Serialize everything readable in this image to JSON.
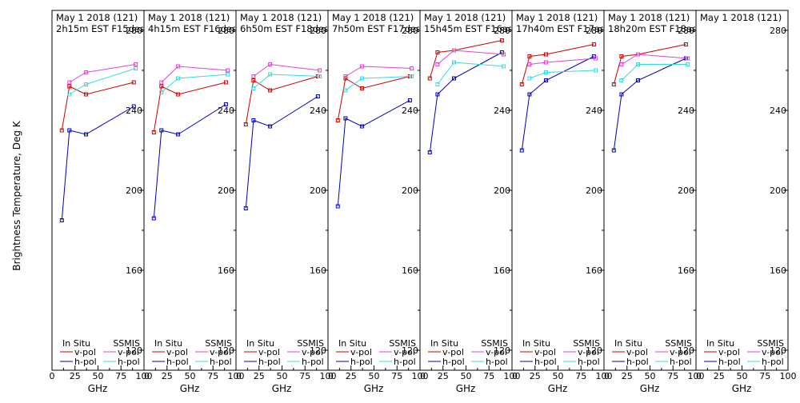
{
  "colors": {
    "insitu_v": "#cc0000",
    "insitu_h": "#0000bb",
    "ssmis_v": "#dd44dd",
    "ssmis_h": "#33dddd",
    "axes": "#000000",
    "background": "#ffffff"
  },
  "y_axis_label": "Brightness Temperature, Deg K",
  "x_axis_label": "GHz",
  "y_ticks": [
    "120",
    "160",
    "200",
    "240",
    "280"
  ],
  "x_ticks": [
    "0",
    "25",
    "50",
    "75",
    "100"
  ],
  "legend": {
    "insitu_header": "In Situ",
    "ssmis_header": "SSMIS",
    "v_label": "v-pol",
    "h_label": "h-pol"
  },
  "chart_data": [
    {
      "type": "line",
      "title_line1": "May 1 2018 (121)",
      "title_line2": "2h15m EST F15des",
      "ylim": [
        110,
        290
      ],
      "xlim": [
        0,
        100
      ],
      "series": [
        {
          "name": "In Situ v-pol",
          "x": [
            10.7,
            19,
            37,
            89
          ],
          "values": [
            230,
            252,
            248,
            254
          ]
        },
        {
          "name": "In Situ h-pol",
          "x": [
            10.7,
            19,
            37,
            89
          ],
          "values": [
            185,
            230,
            228,
            242
          ]
        },
        {
          "name": "SSMIS v-pol",
          "x": [
            19,
            37,
            91
          ],
          "values": [
            254,
            259,
            263
          ]
        },
        {
          "name": "SSMIS h-pol",
          "x": [
            19,
            37,
            91
          ],
          "values": [
            248,
            253,
            261
          ]
        }
      ]
    },
    {
      "type": "line",
      "title_line1": "May 1 2018 (121)",
      "title_line2": "4h15m EST F16des",
      "ylim": [
        110,
        290
      ],
      "xlim": [
        0,
        100
      ],
      "series": [
        {
          "name": "In Situ v-pol",
          "x": [
            10.7,
            19,
            37,
            89
          ],
          "values": [
            229,
            252,
            248,
            254
          ]
        },
        {
          "name": "In Situ h-pol",
          "x": [
            10.7,
            19,
            37,
            89
          ],
          "values": [
            186,
            230,
            228,
            243
          ]
        },
        {
          "name": "SSMIS v-pol",
          "x": [
            19,
            37,
            91
          ],
          "values": [
            254,
            262,
            260
          ]
        },
        {
          "name": "SSMIS h-pol",
          "x": [
            19,
            37,
            91
          ],
          "values": [
            249,
            256,
            258
          ]
        }
      ]
    },
    {
      "type": "line",
      "title_line1": "May 1 2018 (121)",
      "title_line2": "6h50m EST F18des",
      "ylim": [
        110,
        290
      ],
      "xlim": [
        0,
        100
      ],
      "series": [
        {
          "name": "In Situ v-pol",
          "x": [
            10.7,
            19,
            37,
            89
          ],
          "values": [
            233,
            255,
            250,
            257
          ]
        },
        {
          "name": "In Situ h-pol",
          "x": [
            10.7,
            19,
            37,
            89
          ],
          "values": [
            191,
            235,
            232,
            247
          ]
        },
        {
          "name": "SSMIS v-pol",
          "x": [
            19,
            37,
            91
          ],
          "values": [
            257,
            263,
            260
          ]
        },
        {
          "name": "SSMIS h-pol",
          "x": [
            19,
            37,
            91
          ],
          "values": [
            251,
            258,
            257
          ]
        }
      ]
    },
    {
      "type": "line",
      "title_line1": "May 1 2018 (121)",
      "title_line2": "7h50m EST F17des",
      "ylim": [
        110,
        290
      ],
      "xlim": [
        0,
        100
      ],
      "series": [
        {
          "name": "In Situ v-pol",
          "x": [
            10.7,
            19,
            37,
            89
          ],
          "values": [
            235,
            256,
            251,
            257
          ]
        },
        {
          "name": "In Situ h-pol",
          "x": [
            10.7,
            19,
            37,
            89
          ],
          "values": [
            192,
            236,
            232,
            245
          ]
        },
        {
          "name": "SSMIS v-pol",
          "x": [
            19,
            37,
            91
          ],
          "values": [
            257,
            262,
            261
          ]
        },
        {
          "name": "SSMIS h-pol",
          "x": [
            19,
            37,
            91
          ],
          "values": [
            250,
            256,
            257
          ]
        }
      ]
    },
    {
      "type": "line",
      "title_line1": "May 1 2018 (121)",
      "title_line2": "15h45m EST F16asc",
      "ylim": [
        110,
        290
      ],
      "xlim": [
        0,
        100
      ],
      "series": [
        {
          "name": "In Situ v-pol",
          "x": [
            10.7,
            19,
            37,
            89
          ],
          "values": [
            256,
            269,
            270,
            275
          ]
        },
        {
          "name": "In Situ h-pol",
          "x": [
            10.7,
            19,
            37,
            89
          ],
          "values": [
            219,
            248,
            256,
            269
          ]
        },
        {
          "name": "SSMIS v-pol",
          "x": [
            19,
            37,
            91
          ],
          "values": [
            263,
            270,
            268
          ]
        },
        {
          "name": "SSMIS h-pol",
          "x": [
            19,
            37,
            91
          ],
          "values": [
            253,
            264,
            262
          ]
        }
      ]
    },
    {
      "type": "line",
      "title_line1": "May 1 2018 (121)",
      "title_line2": "17h40m EST F17asc",
      "ylim": [
        110,
        290
      ],
      "xlim": [
        0,
        100
      ],
      "series": [
        {
          "name": "In Situ v-pol",
          "x": [
            10.7,
            19,
            37,
            89
          ],
          "values": [
            253,
            267,
            268,
            273
          ]
        },
        {
          "name": "In Situ h-pol",
          "x": [
            10.7,
            19,
            37,
            89
          ],
          "values": [
            220,
            248,
            255,
            267
          ]
        },
        {
          "name": "SSMIS v-pol",
          "x": [
            19,
            37,
            91
          ],
          "values": [
            263,
            264,
            266
          ]
        },
        {
          "name": "SSMIS h-pol",
          "x": [
            19,
            37,
            91
          ],
          "values": [
            256,
            259,
            260
          ]
        }
      ]
    },
    {
      "type": "line",
      "title_line1": "May 1 2018 (121)",
      "title_line2": "18h20m EST F18asc",
      "ylim": [
        110,
        290
      ],
      "xlim": [
        0,
        100
      ],
      "series": [
        {
          "name": "In Situ v-pol",
          "x": [
            10.7,
            19,
            37,
            89
          ],
          "values": [
            253,
            267,
            268,
            273
          ]
        },
        {
          "name": "In Situ h-pol",
          "x": [
            10.7,
            19,
            37,
            89
          ],
          "values": [
            220,
            248,
            255,
            266
          ]
        },
        {
          "name": "SSMIS v-pol",
          "x": [
            19,
            37,
            91
          ],
          "values": [
            263,
            268,
            266
          ]
        },
        {
          "name": "SSMIS h-pol",
          "x": [
            19,
            37,
            91
          ],
          "values": [
            255,
            263,
            263
          ]
        }
      ]
    },
    {
      "type": "line",
      "title_line1": "May 1 2018 (121)",
      "title_line2": "",
      "ylim": [
        110,
        290
      ],
      "xlim": [
        0,
        100
      ],
      "series": []
    }
  ]
}
